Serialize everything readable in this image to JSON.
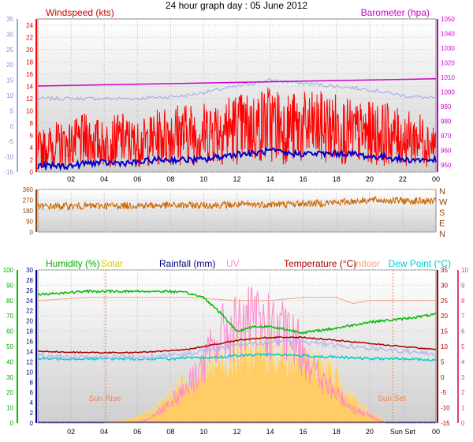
{
  "title": "24 hour graph day : 05 June 2012",
  "colors": {
    "wind": "#ff0000",
    "wind_avg": "#0000cc",
    "temp_blue_axis": "#9aa8e6",
    "barometer": "#cc00cc",
    "wind_dir": "#cc6600",
    "axis_dark": "#8b4513",
    "humidity": "#00bb00",
    "solar": "#ffcc66",
    "rainfall": "#000080",
    "uv": "#ff88cc",
    "temperature": "#aa0000",
    "indoor": "#f4a582",
    "dewpoint": "#00cccc",
    "sunlabel": "#f08050",
    "pink_axis": "#e04080"
  },
  "chart_data": [
    {
      "type": "line",
      "title": "",
      "left_label": "Windspeed (kts)",
      "right_label": "Barometer (hpa)",
      "x_ticks": [
        "02",
        "04",
        "06",
        "08",
        "10",
        "12",
        "14",
        "16",
        "18",
        "20",
        "22",
        "00"
      ],
      "y_left_blue": {
        "range": [
          -15,
          35
        ],
        "ticks": [
          "-15",
          "-10",
          "-5",
          "0",
          "5",
          "10",
          "15",
          "20",
          "25",
          "30",
          "35"
        ]
      },
      "y_left_red": {
        "range": [
          0,
          25
        ],
        "ticks": [
          "0",
          "2",
          "4",
          "6",
          "8",
          "10",
          "12",
          "14",
          "16",
          "18",
          "20",
          "22",
          "24"
        ]
      },
      "y_right": {
        "range": [
          945,
          1050
        ],
        "ticks": [
          "950",
          "960",
          "970",
          "980",
          "990",
          "1000",
          "1010",
          "1020",
          "1030",
          "1040",
          "1050"
        ]
      },
      "series": [
        {
          "name": "Windspeed (kts)",
          "role": "gust",
          "x": [
            0,
            1,
            2,
            3,
            4,
            5,
            6,
            7,
            8,
            9,
            10,
            11,
            12,
            13,
            14,
            15,
            16,
            17,
            18,
            19,
            20,
            21,
            22,
            23,
            24
          ],
          "values": [
            4,
            5,
            5,
            6,
            5,
            6,
            5,
            6,
            7,
            7,
            7,
            8,
            8,
            8,
            9,
            8,
            8,
            8,
            8,
            7,
            7,
            7,
            6,
            6,
            5
          ]
        },
        {
          "name": "Windspeed (kts)",
          "role": "average",
          "x": [
            0,
            1,
            2,
            3,
            4,
            5,
            6,
            7,
            8,
            9,
            10,
            11,
            12,
            13,
            14,
            15,
            16,
            17,
            18,
            19,
            20,
            21,
            22,
            23,
            24
          ],
          "values": [
            1,
            1,
            1,
            1.5,
            1.5,
            1.5,
            1.5,
            2,
            2,
            2,
            2,
            2.5,
            3,
            3,
            3.5,
            3,
            3,
            3,
            3,
            3,
            2.5,
            2.5,
            2,
            2,
            2
          ]
        },
        {
          "name": "Barometer (hpa)",
          "role": "barometer",
          "x": [
            0,
            24
          ],
          "values": [
            1004,
            1009
          ]
        },
        {
          "role": "temperature-blue",
          "x": [
            0,
            6,
            9,
            12,
            14,
            16,
            18,
            20,
            22,
            24
          ],
          "values": [
            9,
            9,
            10,
            13,
            15,
            14,
            13,
            12,
            10,
            9
          ]
        }
      ]
    },
    {
      "type": "scatter",
      "title": "",
      "x_ticks": [],
      "y_left": {
        "range": [
          0,
          360
        ],
        "ticks": [
          "0",
          "90",
          "180",
          "270",
          "360"
        ]
      },
      "y_right": {
        "ticks": [
          "N",
          "W",
          "S",
          "E",
          "N"
        ]
      },
      "series": [
        {
          "role": "direction",
          "x": [
            0,
            3,
            6,
            9,
            12,
            15,
            18,
            20,
            22,
            24
          ],
          "values": [
            215,
            220,
            225,
            225,
            230,
            235,
            250,
            270,
            265,
            260
          ]
        }
      ]
    },
    {
      "type": "line",
      "title": "",
      "legend": [
        "Humidity (%)",
        "Solar",
        "Rainfall (mm)",
        "UV",
        "Temperature (°C)",
        "Indoor",
        "Dew Point (°C)"
      ],
      "x_ticks": [
        "02",
        "04",
        "06",
        "08",
        "10",
        "12",
        "14",
        "16",
        "18",
        "20",
        "Sun Set",
        "00"
      ],
      "annotations": [
        "Sun Rise",
        "Sun Set"
      ],
      "sunrise_hour": 4.1,
      "sunset_hour": 21.4,
      "y_left_green": {
        "range": [
          0,
          100
        ],
        "ticks": [
          "0",
          "10",
          "20",
          "30",
          "40",
          "50",
          "60",
          "70",
          "80",
          "90",
          "100"
        ]
      },
      "y_left_navy": {
        "range": [
          0,
          30
        ],
        "ticks": [
          "0",
          "2",
          "4",
          "6",
          "8",
          "10",
          "12",
          "14",
          "16",
          "18",
          "20",
          "22",
          "24",
          "26",
          "28",
          "30"
        ]
      },
      "y_right_red": {
        "range": [
          -15,
          35
        ],
        "ticks": [
          "-15",
          "-10",
          "-5",
          "0",
          "5",
          "10",
          "15",
          "20",
          "25",
          "30",
          "35"
        ]
      },
      "y_right_pink": {
        "range": [
          0,
          10
        ],
        "ticks": [
          "0",
          "1",
          "2",
          "3",
          "4",
          "5",
          "6",
          "7",
          "8",
          "9",
          "10"
        ]
      },
      "series": [
        {
          "name": "Humidity (%)",
          "x": [
            0,
            3,
            6,
            8,
            9,
            10,
            11,
            12,
            13,
            14,
            16,
            18,
            20,
            22,
            24
          ],
          "values": [
            84,
            86,
            86,
            86,
            85,
            82,
            72,
            60,
            63,
            63,
            59,
            62,
            66,
            68,
            71
          ]
        },
        {
          "name": "Temperature (°C)",
          "x": [
            0,
            3,
            6,
            9,
            11,
            12,
            13,
            14,
            16,
            18,
            20,
            22,
            24
          ],
          "values": [
            8.5,
            8,
            8,
            9,
            11,
            12,
            12.5,
            13,
            13,
            12,
            11,
            10,
            9
          ]
        },
        {
          "name": "Indoor",
          "x": [
            0,
            3,
            6,
            9,
            12,
            14,
            16,
            18,
            19,
            20,
            22,
            24
          ],
          "values": [
            25,
            26,
            26,
            26,
            25,
            25,
            26,
            26,
            24,
            25,
            25,
            25
          ]
        },
        {
          "name": "Dew Point (°C)",
          "x": [
            0,
            4,
            8,
            11,
            12,
            14,
            16,
            18,
            20,
            22,
            24
          ],
          "values": [
            6,
            6,
            6,
            6.5,
            7,
            7.5,
            7,
            6.5,
            6,
            6,
            5.5
          ]
        },
        {
          "name": "Solar",
          "x": [
            4,
            5,
            6,
            7,
            8,
            9,
            10,
            11,
            12,
            13,
            14,
            15,
            16,
            17,
            18,
            19,
            20,
            21
          ],
          "values": [
            0.2,
            1,
            2,
            5,
            11,
            16,
            20,
            23,
            26,
            27,
            27,
            25,
            24,
            22,
            18,
            9,
            4,
            0.5
          ]
        },
        {
          "name": "UV",
          "x": [
            6,
            7,
            8,
            9,
            10,
            11,
            12,
            13,
            14,
            15,
            16,
            17,
            18,
            19,
            20,
            21
          ],
          "values": [
            0,
            0.5,
            1.5,
            2.5,
            4,
            6,
            6.5,
            7,
            6.5,
            6,
            5,
            3,
            2,
            1,
            0.5,
            0
          ]
        },
        {
          "name": "Rainfall (mm)",
          "x": [
            0,
            24
          ],
          "values": [
            0,
            0
          ]
        }
      ]
    }
  ]
}
